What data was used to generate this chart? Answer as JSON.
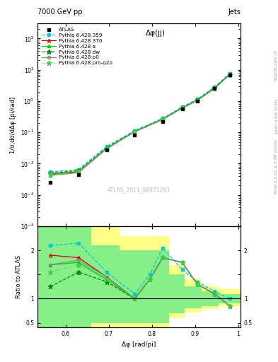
{
  "title_left": "7000 GeV pp",
  "title_right": "Jets",
  "plot_title": "Δφ(jj)",
  "ylabel_main": "1/σ;dσ/dΔφ [pi/rad]",
  "ylabel_ratio": "Ratio to ATLAS",
  "xlabel": "Δφ [rad/pi]",
  "watermark": "ATLAS_2011_S8971293",
  "right_label": "Rivet 3.1.10, ≥ 3.2M events",
  "arxiv_label": "[arXiv:1306.3436]",
  "mcplots_label": "mcplots.cern.ch",
  "x_data": [
    0.565,
    0.63,
    0.695,
    0.76,
    0.825,
    0.87,
    0.905,
    0.945,
    0.98
  ],
  "atlas_y": [
    0.0025,
    0.0045,
    0.028,
    0.08,
    0.22,
    0.55,
    1.0,
    2.5,
    7.0
  ],
  "py359_y": [
    0.0055,
    0.0065,
    0.035,
    0.115,
    0.28,
    0.65,
    1.15,
    2.8,
    7.5
  ],
  "py370_y": [
    0.0048,
    0.0055,
    0.03,
    0.105,
    0.26,
    0.6,
    1.05,
    2.6,
    7.0
  ],
  "pya_y": [
    0.0042,
    0.0052,
    0.03,
    0.105,
    0.26,
    0.6,
    1.05,
    2.6,
    7.0
  ],
  "pydw_y": [
    0.005,
    0.006,
    0.033,
    0.108,
    0.27,
    0.62,
    1.08,
    2.7,
    7.2
  ],
  "pyp0_y": [
    0.0045,
    0.0053,
    0.03,
    0.105,
    0.26,
    0.59,
    1.03,
    2.5,
    6.9
  ],
  "pyq2o_y": [
    0.0048,
    0.0058,
    0.032,
    0.107,
    0.27,
    0.61,
    1.06,
    2.6,
    7.1
  ],
  "ratio_x": [
    0.565,
    0.63,
    0.695,
    0.76,
    0.795,
    0.825,
    0.87,
    0.905,
    0.945,
    0.98
  ],
  "ratio_359": [
    2.1,
    2.15,
    1.55,
    1.1,
    1.5,
    2.05,
    1.6,
    1.35,
    1.15,
    1.0
  ],
  "ratio_370": [
    1.9,
    1.85,
    1.45,
    1.0,
    1.4,
    1.85,
    1.75,
    1.3,
    1.1,
    0.85
  ],
  "ratio_a": [
    1.7,
    1.75,
    1.4,
    1.0,
    1.4,
    1.85,
    1.75,
    1.3,
    1.1,
    0.85
  ],
  "ratio_dw": [
    1.25,
    1.55,
    1.35,
    1.0,
    1.4,
    1.85,
    1.75,
    1.3,
    1.1,
    0.85
  ],
  "ratio_p0": [
    1.7,
    1.8,
    1.45,
    1.0,
    1.4,
    1.85,
    1.75,
    1.3,
    1.1,
    0.85
  ],
  "ratio_q2o": [
    1.55,
    1.7,
    1.4,
    1.0,
    1.4,
    1.85,
    1.75,
    1.3,
    1.1,
    0.85
  ],
  "band_edges": [
    0.535,
    0.595,
    0.66,
    0.725,
    0.79,
    0.84,
    0.875,
    0.915,
    0.955,
    1.005
  ],
  "band_green_hi": [
    2.5,
    2.5,
    2.1,
    2.0,
    2.0,
    1.5,
    1.25,
    1.15,
    1.1
  ],
  "band_green_lo": [
    0.3,
    0.3,
    0.5,
    0.5,
    0.5,
    0.7,
    0.8,
    0.85,
    0.9
  ],
  "band_yellow_hi": [
    2.8,
    2.8,
    2.5,
    2.3,
    2.3,
    1.7,
    1.4,
    1.25,
    1.2
  ],
  "band_yellow_lo": [
    0.2,
    0.2,
    0.35,
    0.4,
    0.4,
    0.6,
    0.72,
    0.78,
    0.85
  ],
  "color_359": "#00cccc",
  "color_370": "#cc0000",
  "color_a": "#00cc00",
  "color_dw": "#008800",
  "color_p0": "#888888",
  "color_q2o": "#44cc44",
  "xlim": [
    0.535,
    1.005
  ],
  "ylim_main": [
    0.0001,
    300.0
  ],
  "ylim_ratio": [
    0.4,
    2.5
  ]
}
